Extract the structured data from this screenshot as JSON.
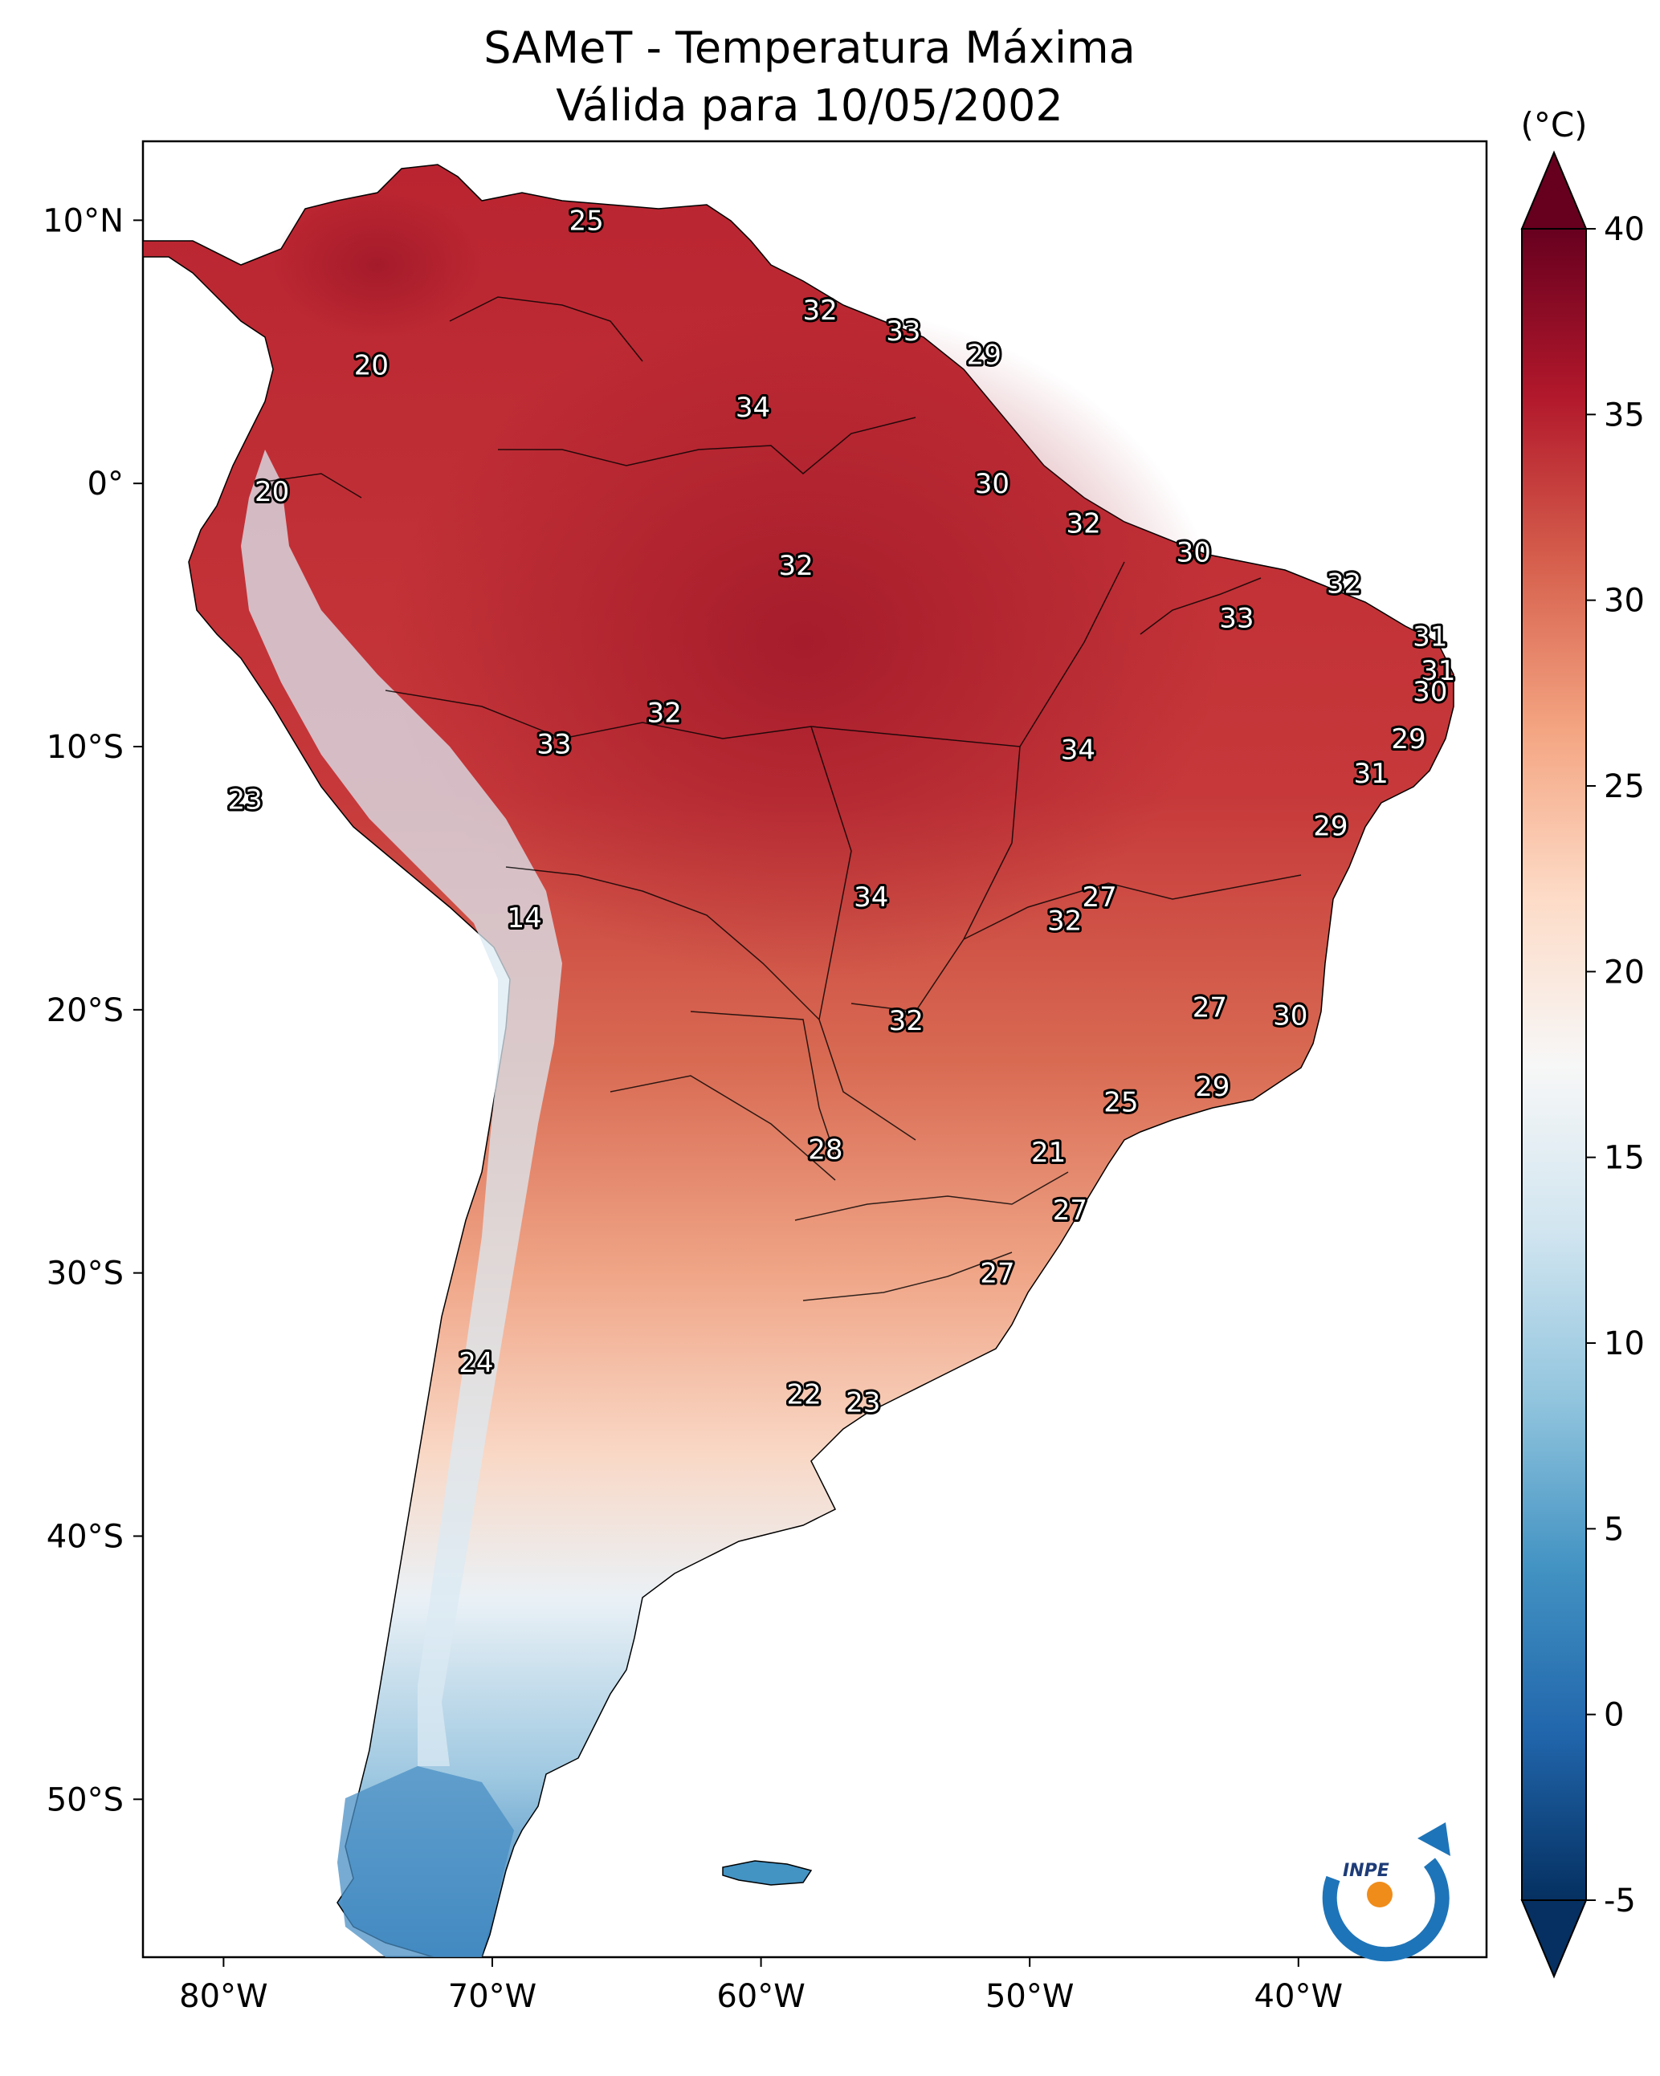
{
  "chart_data": {
    "type": "heatmap",
    "title_line1": "SAMeT - Temperatura Máxima",
    "title_line2": "Válida para 10/05/2002",
    "map_region": "South America",
    "lon_range": [
      -83,
      -33
    ],
    "lat_range": [
      -56,
      13
    ],
    "x_ticks": [
      {
        "value": -80,
        "label": "80°W"
      },
      {
        "value": -70,
        "label": "70°W"
      },
      {
        "value": -60,
        "label": "60°W"
      },
      {
        "value": -50,
        "label": "50°W"
      },
      {
        "value": -40,
        "label": "40°W"
      }
    ],
    "y_ticks": [
      {
        "value": 10,
        "label": "10°N"
      },
      {
        "value": 0,
        "label": "0°"
      },
      {
        "value": -10,
        "label": "10°S"
      },
      {
        "value": -20,
        "label": "20°S"
      },
      {
        "value": -30,
        "label": "30°S"
      },
      {
        "value": -40,
        "label": "40°S"
      },
      {
        "value": -50,
        "label": "50°S"
      }
    ],
    "colorbar": {
      "unit": "(°C)",
      "min": -5,
      "max": 40,
      "extend": "both",
      "ticks": [
        {
          "value": 40,
          "label": "40"
        },
        {
          "value": 35,
          "label": "35"
        },
        {
          "value": 30,
          "label": "30"
        },
        {
          "value": 25,
          "label": "25"
        },
        {
          "value": 20,
          "label": "20"
        },
        {
          "value": 15,
          "label": "15"
        },
        {
          "value": 10,
          "label": "10"
        },
        {
          "value": 5,
          "label": "5"
        },
        {
          "value": 0,
          "label": "0"
        },
        {
          "value": -5,
          "label": "-5"
        }
      ],
      "colors": [
        "#053061",
        "#2166ac",
        "#4393c3",
        "#92c5de",
        "#d1e5f0",
        "#f7f7f7",
        "#fddbc7",
        "#f4a582",
        "#d6604d",
        "#b2182b",
        "#67001f"
      ]
    },
    "point_labels": [
      {
        "lon": -66.5,
        "lat": 10.0,
        "text": "25"
      },
      {
        "lon": -74.5,
        "lat": 4.5,
        "text": "20"
      },
      {
        "lon": -57.8,
        "lat": 6.6,
        "text": "32"
      },
      {
        "lon": -54.7,
        "lat": 5.8,
        "text": "33"
      },
      {
        "lon": -51.7,
        "lat": 4.9,
        "text": "29"
      },
      {
        "lon": -60.3,
        "lat": 2.9,
        "text": "34"
      },
      {
        "lon": -78.2,
        "lat": -0.3,
        "text": "20"
      },
      {
        "lon": -51.4,
        "lat": 0.0,
        "text": "30"
      },
      {
        "lon": -48.0,
        "lat": -1.5,
        "text": "32"
      },
      {
        "lon": -43.9,
        "lat": -2.6,
        "text": "30"
      },
      {
        "lon": -58.7,
        "lat": -3.1,
        "text": "32"
      },
      {
        "lon": -38.3,
        "lat": -3.8,
        "text": "32"
      },
      {
        "lon": -42.3,
        "lat": -5.1,
        "text": "33"
      },
      {
        "lon": -35.1,
        "lat": -5.8,
        "text": "31"
      },
      {
        "lon": -34.8,
        "lat": -7.1,
        "text": "31"
      },
      {
        "lon": -35.1,
        "lat": -7.9,
        "text": "30"
      },
      {
        "lon": -63.6,
        "lat": -8.7,
        "text": "32"
      },
      {
        "lon": -35.9,
        "lat": -9.7,
        "text": "29"
      },
      {
        "lon": -67.7,
        "lat": -9.9,
        "text": "33"
      },
      {
        "lon": -48.2,
        "lat": -10.1,
        "text": "34"
      },
      {
        "lon": -37.3,
        "lat": -11.0,
        "text": "31"
      },
      {
        "lon": -79.2,
        "lat": -12.0,
        "text": "23"
      },
      {
        "lon": -38.8,
        "lat": -13.0,
        "text": "29"
      },
      {
        "lon": -47.4,
        "lat": -15.7,
        "text": "27"
      },
      {
        "lon": -55.9,
        "lat": -15.7,
        "text": "34"
      },
      {
        "lon": -48.7,
        "lat": -16.6,
        "text": "32"
      },
      {
        "lon": -68.8,
        "lat": -16.5,
        "text": "14"
      },
      {
        "lon": -43.3,
        "lat": -19.9,
        "text": "27"
      },
      {
        "lon": -54.6,
        "lat": -20.4,
        "text": "32"
      },
      {
        "lon": -40.3,
        "lat": -20.2,
        "text": "30"
      },
      {
        "lon": -43.2,
        "lat": -22.9,
        "text": "29"
      },
      {
        "lon": -46.6,
        "lat": -23.5,
        "text": "25"
      },
      {
        "lon": -57.6,
        "lat": -25.3,
        "text": "28"
      },
      {
        "lon": -49.3,
        "lat": -25.4,
        "text": "21"
      },
      {
        "lon": -48.5,
        "lat": -27.6,
        "text": "27"
      },
      {
        "lon": -51.2,
        "lat": -30.0,
        "text": "27"
      },
      {
        "lon": -70.6,
        "lat": -33.4,
        "text": "24"
      },
      {
        "lon": -58.4,
        "lat": -34.6,
        "text": "22"
      },
      {
        "lon": -56.2,
        "lat": -34.9,
        "text": "23"
      }
    ]
  },
  "logo": {
    "text": "INPE"
  }
}
